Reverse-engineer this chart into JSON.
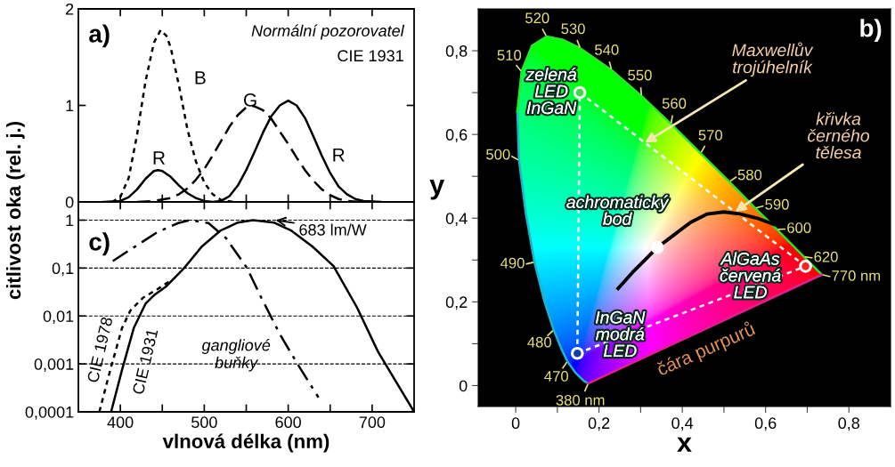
{
  "chart_data": [
    {
      "type": "line",
      "ylabel": "citlivost oka (rel. j.)",
      "xlim": [
        350,
        750
      ],
      "ylim": [
        0,
        2
      ],
      "tick_labels": "y",
      "xticks": [
        400,
        {
          "value": 450,
          "label": null
        },
        500,
        {
          "value": 550,
          "label": null
        },
        600,
        {
          "value": 650,
          "label": null
        },
        700
      ],
      "yticks": [
        0,
        1,
        2
      ],
      "series": [
        {
          "color": "#000000",
          "line_style": "solid",
          "x": [
            380,
            400,
            410,
            420,
            430,
            440,
            445,
            450,
            460,
            470,
            480,
            490,
            500,
            510,
            520,
            530,
            540,
            550,
            560,
            570,
            580,
            590,
            600,
            610,
            620,
            630,
            640,
            650,
            660,
            670,
            680,
            690,
            710
          ],
          "values": [
            0,
            0.01,
            0.05,
            0.13,
            0.24,
            0.32,
            0.33,
            0.32,
            0.26,
            0.17,
            0.09,
            0.04,
            0.01,
            0,
            0.01,
            0.06,
            0.17,
            0.33,
            0.52,
            0.72,
            0.89,
            1.0,
            1.05,
            1.0,
            0.87,
            0.68,
            0.48,
            0.3,
            0.16,
            0.08,
            0.03,
            0.01,
            0
          ]
        },
        {
          "color": "#000000",
          "line_style": "dashed",
          "x": [
            420,
            440,
            460,
            470,
            480,
            490,
            500,
            510,
            520,
            530,
            540,
            550,
            555,
            560,
            570,
            580,
            590,
            600,
            610,
            620,
            630,
            640,
            650,
            660,
            670,
            685
          ],
          "values": [
            0,
            0.01,
            0.04,
            0.08,
            0.14,
            0.23,
            0.34,
            0.48,
            0.63,
            0.78,
            0.9,
            0.98,
            1.0,
            0.99,
            0.95,
            0.86,
            0.73,
            0.6,
            0.46,
            0.33,
            0.22,
            0.13,
            0.07,
            0.03,
            0.01,
            0
          ]
        },
        {
          "color": "#000000",
          "line_style": "dotted",
          "x": [
            390,
            400,
            410,
            420,
            430,
            440,
            448,
            455,
            460,
            470,
            480,
            490,
            500,
            510,
            520,
            535
          ],
          "values": [
            0,
            0.05,
            0.25,
            0.7,
            1.25,
            1.65,
            1.78,
            1.72,
            1.6,
            1.2,
            0.75,
            0.42,
            0.2,
            0.08,
            0.02,
            0
          ]
        }
      ],
      "annotations": [
        "a)",
        "Normální pozorovatel",
        "CIE 1931",
        "B",
        "G",
        "R",
        "R"
      ]
    },
    {
      "type": "line",
      "xlabel": "x",
      "ylabel": "y",
      "xlim": [
        -0.09,
        0.9
      ],
      "ylim": [
        -0.05,
        0.9
      ],
      "xticks": [
        0,
        {
          "value": 0.1,
          "label": null
        },
        {
          "value": 0.2,
          "label": "0,2"
        },
        {
          "value": 0.3,
          "label": null
        },
        {
          "value": 0.4,
          "label": "0,4"
        },
        {
          "value": 0.5,
          "label": null
        },
        {
          "value": 0.6,
          "label": "0,6"
        },
        {
          "value": 0.7,
          "label": null
        },
        {
          "value": 0.8,
          "label": "0,8"
        }
      ],
      "yticks": [
        0,
        {
          "value": 0.1,
          "label": null
        },
        {
          "value": 0.2,
          "label": "0,2"
        },
        {
          "value": 0.3,
          "label": null
        },
        {
          "value": 0.4,
          "label": "0,4"
        },
        {
          "value": 0.5,
          "label": null
        },
        {
          "value": 0.6,
          "label": "0,6"
        },
        {
          "value": 0.7,
          "label": null
        },
        {
          "value": 0.8,
          "label": "0,8"
        }
      ],
      "series": [
        {
          "color": "#20b4c8",
          "line_style": "solid",
          "x": [
            0.174,
            0.164,
            0.144,
            0.124,
            0.11,
            0.091,
            0.069,
            0.045,
            0.024,
            0.008,
            0.004
          ],
          "values": [
            0.005,
            0.011,
            0.03,
            0.058,
            0.087,
            0.133,
            0.201,
            0.295,
            0.413,
            0.538,
            0.655
          ]
        },
        {
          "color": "#28e628",
          "line_style": "solid",
          "x": [
            0.004,
            0.014,
            0.039,
            0.074,
            0.114,
            0.155,
            0.23,
            0.302,
            0.373,
            0.444,
            0.513,
            0.575,
            0.627,
            0.692,
            0.735
          ],
          "values": [
            0.655,
            0.75,
            0.812,
            0.834,
            0.826,
            0.806,
            0.754,
            0.692,
            0.625,
            0.555,
            0.487,
            0.424,
            0.373,
            0.308,
            0.265
          ]
        },
        {
          "color": "#e0208c",
          "line_style": "solid",
          "x": [
            0.174,
            0.735
          ],
          "values": [
            0.005,
            0.265
          ]
        },
        {
          "color": "#ffffff",
          "line_style": "dotted",
          "x": [
            0.148,
            0.154
          ],
          "values": [
            0.077,
            0.7
          ]
        },
        {
          "color": "#ffffff",
          "line_style": "dotted",
          "x": [
            0.148,
            0.696
          ],
          "values": [
            0.077,
            0.285
          ]
        },
        {
          "color": "#ffffff",
          "line_style": "dotted",
          "x": [
            0.154,
            0.696
          ],
          "values": [
            0.7,
            0.285
          ]
        },
        {
          "color": "#000000",
          "line_style": "solid",
          "x": [
            0.246,
            0.28,
            0.31,
            0.34,
            0.38,
            0.42,
            0.46,
            0.5,
            0.54,
            0.58,
            0.62
          ],
          "values": [
            0.232,
            0.27,
            0.3,
            0.33,
            0.36,
            0.39,
            0.41,
            0.415,
            0.41,
            0.4,
            0.385
          ]
        },
        {
          "type": "scatter",
          "marker": "circle",
          "colors": [
            "#3cdc3c",
            "#ffffff",
            "#ff2020",
            "#1040a0"
          ],
          "x": [
            0.154,
            0.34,
            0.696,
            0.148
          ],
          "values": [
            0.7,
            0.33,
            0.285,
            0.077
          ]
        }
      ],
      "annotations": [
        "b)",
        {
          "text": "Maxwellův\ntrojúhelník",
          "x": 0.31,
          "y": 0.58
        },
        {
          "text": "křivka\nčerného\ntělesa",
          "x": 0.527,
          "y": 0.415
        },
        {
          "text": "zelená\nLED\nInGaN",
          "x": 0.154,
          "y": 0.7
        },
        {
          "text": "achromatický\nbod",
          "x": 0.34,
          "y": 0.33
        },
        {
          "text": "AlGaAs\nčervená\nLED",
          "x": 0.696,
          "y": 0.285
        },
        {
          "text": "InGaN\nmodrá\nLED",
          "x": 0.148,
          "y": 0.077
        },
        "čára purpurů",
        {
          "text": "380 nm",
          "x": 0.174,
          "y": 0.005
        },
        {
          "text": "470",
          "x": 0.124,
          "y": 0.058
        },
        {
          "text": "480",
          "x": 0.091,
          "y": 0.133
        },
        {
          "text": "490",
          "x": 0.045,
          "y": 0.295
        },
        {
          "text": "500",
          "x": 0.008,
          "y": 0.538
        },
        {
          "text": "510",
          "x": 0.014,
          "y": 0.75
        },
        {
          "text": "520",
          "x": 0.074,
          "y": 0.834
        },
        {
          "text": "530",
          "x": 0.155,
          "y": 0.806
        },
        {
          "text": "540",
          "x": 0.23,
          "y": 0.754
        },
        {
          "text": "550",
          "x": 0.302,
          "y": 0.692
        },
        {
          "text": "560",
          "x": 0.373,
          "y": 0.625
        },
        {
          "text": "570",
          "x": 0.444,
          "y": 0.555
        },
        {
          "text": "580",
          "x": 0.513,
          "y": 0.487
        },
        {
          "text": "590",
          "x": 0.575,
          "y": 0.424
        },
        {
          "text": "600",
          "x": 0.627,
          "y": 0.373
        },
        {
          "text": "620",
          "x": 0.692,
          "y": 0.308
        },
        {
          "text": "770 nm",
          "x": 0.735,
          "y": 0.265
        }
      ]
    },
    {
      "type": "line",
      "xlabel": "vlnová délka (nm)",
      "xlim": [
        350,
        750
      ],
      "ylim": [
        0.0001,
        2.4
      ],
      "log": "y",
      "grid": "y",
      "xticks": [
        400,
        {
          "value": 450,
          "label": null
        },
        500,
        {
          "value": 550,
          "label": null
        },
        600,
        {
          "value": 650,
          "label": null
        },
        700
      ],
      "yticks": [
        {
          "value": 0.0001,
          "label": "0,0001"
        },
        {
          "value": 0.001,
          "label": "0,001"
        },
        {
          "value": 0.01,
          "label": "0,01"
        },
        {
          "value": 0.1,
          "label": "0,1"
        },
        1
      ],
      "series": [
        {
          "color": "#000000",
          "line_style": "solid",
          "x": [
            389,
            402,
            416,
            430,
            441,
            455,
            476,
            497,
            519,
            540,
            558,
            583,
            604,
            629,
            654,
            682,
            707,
            750
          ],
          "values": [
            0.0001,
            0.00075,
            0.0056,
            0.018,
            0.028,
            0.042,
            0.1,
            0.28,
            0.6,
            0.89,
            1.0,
            0.89,
            0.6,
            0.28,
            0.11,
            0.015,
            0.0018,
            0.0001
          ]
        },
        {
          "color": "#000000",
          "line_style": "dotted",
          "x": [
            375,
            388,
            402,
            412,
            427,
            444,
            458
          ],
          "values": [
            0.0001,
            0.00075,
            0.0056,
            0.013,
            0.024,
            0.036,
            0.052
          ]
        },
        {
          "color": "#000000",
          "line_style": "dashdot",
          "x": [
            391,
            416,
            444,
            469,
            483,
            505,
            526,
            551,
            568,
            590,
            611,
            636
          ],
          "values": [
            0.14,
            0.27,
            0.56,
            0.87,
            1.0,
            0.87,
            0.42,
            0.1,
            0.024,
            0.0042,
            0.001,
            0.0002
          ]
        }
      ],
      "annotations": [
        "c)",
        {
          "text": "683 lm/W",
          "x": 585,
          "y": 1
        },
        {
          "text": "CIE 1978",
          "x": 392,
          "y": 0.0015
        },
        {
          "text": "CIE 1931",
          "x": 412,
          "y": 0.002
        },
        "gangliové\nbuňky"
      ]
    }
  ]
}
